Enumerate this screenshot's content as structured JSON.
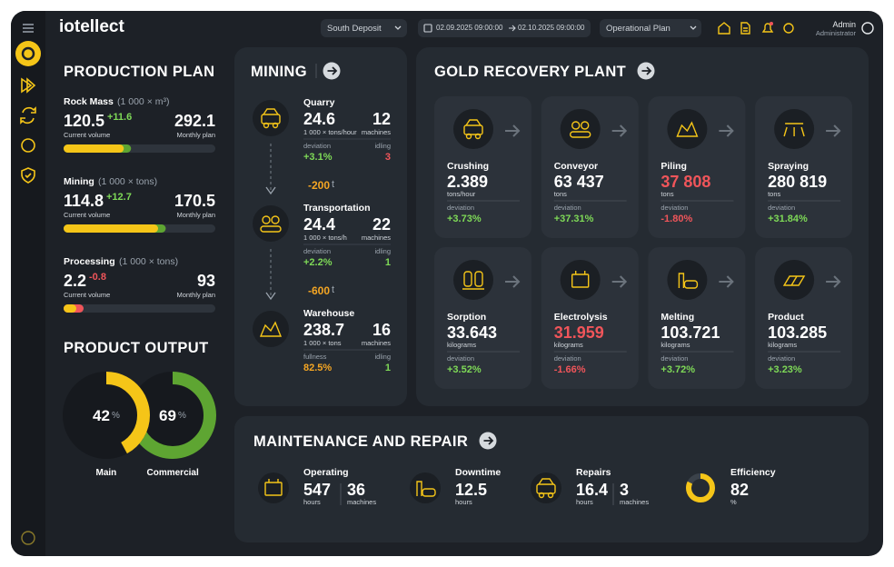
{
  "header": {
    "logo": "iotellect",
    "deposit": "South Deposit",
    "date_from": "02.09.2025 09:00:00",
    "date_to": "02.10.2025 09:00:00",
    "plan": "Operational Plan",
    "user": "Admin",
    "role": "Administrator"
  },
  "production_plan": {
    "title": "PRODUCTION PLAN",
    "current_label": "Current volume",
    "plan_label": "Monthly plan",
    "items": [
      {
        "name": "Rock Mass",
        "unit": "(1 000 × m³)",
        "current": 120.5,
        "delta": "+11.6",
        "plan": 292.1
      },
      {
        "name": "Mining",
        "unit": "(1 000 × tons)",
        "current": 114.8,
        "delta": "+12.7",
        "plan": 170.5
      },
      {
        "name": "Processing",
        "unit": "(1 000 × tons)",
        "current": 2.2,
        "delta": "-0.8",
        "plan": 93.0
      }
    ]
  },
  "product_output": {
    "title": "PRODUCT OUTPUT",
    "unit": "%",
    "items": [
      {
        "name": "Main",
        "value": 42,
        "color": "#f5c518"
      },
      {
        "name": "Commercial",
        "value": 69,
        "color": "#5ea532"
      }
    ]
  },
  "mining": {
    "title": "MINING",
    "stages": [
      {
        "name": "Quarry",
        "value": 24.6,
        "unit": "1 000 × tons/hour",
        "machines": 12,
        "machines_label": "machines",
        "left_label": "deviation",
        "left_value": "+3.1%",
        "left_color": "#7ed957",
        "right_label": "idling",
        "right_value": 3,
        "right_color": "#f0555a"
      },
      {
        "name": "Transportation",
        "value": 24.4,
        "unit": "1 000 × tons/h",
        "machines": 22,
        "machines_label": "machines",
        "left_label": "deviation",
        "left_value": "+2.2%",
        "left_color": "#7ed957",
        "right_label": "idling",
        "right_value": 1,
        "right_color": "#7ed957"
      },
      {
        "name": "Warehouse",
        "value": 238.7,
        "unit": "1 000 × tons",
        "machines": 16,
        "machines_label": "machines",
        "left_label": "fullness",
        "left_value": "82.5%",
        "left_color": "#f5a623",
        "right_label": "idling",
        "right_value": 1,
        "right_color": "#7ed957"
      }
    ],
    "losses": [
      {
        "value": -200,
        "unit": "t"
      },
      {
        "value": -600,
        "unit": "t"
      }
    ]
  },
  "gold_recovery": {
    "title": "GOLD RECOVERY PLANT",
    "deviation_label": "deviation",
    "stages": [
      {
        "name": "Crushing",
        "value": "2.389",
        "unit": "tons/hour",
        "deviation": "+3.73%",
        "value_color": "#ffffff"
      },
      {
        "name": "Conveyor",
        "value": "63 437",
        "unit": "tons",
        "deviation": "+37.31%",
        "value_color": "#ffffff"
      },
      {
        "name": "Piling",
        "value": "37 808",
        "unit": "tons",
        "deviation": "-1.80%",
        "value_color": "#f0555a"
      },
      {
        "name": "Spraying",
        "value": "280 819",
        "unit": "tons",
        "deviation": "+31.84%",
        "value_color": "#ffffff"
      },
      {
        "name": "Sorption",
        "value": "33.643",
        "unit": "kilograms",
        "deviation": "+3.52%",
        "value_color": "#ffffff"
      },
      {
        "name": "Electrolysis",
        "value": "31.959",
        "unit": "kilograms",
        "deviation": "-1.66%",
        "value_color": "#f0555a"
      },
      {
        "name": "Melting",
        "value": "103.721",
        "unit": "kilograms",
        "deviation": "+3.72%",
        "value_color": "#ffffff"
      },
      {
        "name": "Product",
        "value": "103.285",
        "unit": "kilograms",
        "deviation": "+3.23%",
        "value_color": "#ffffff"
      }
    ]
  },
  "maintenance": {
    "title": "MAINTENANCE AND REPAIR",
    "items": [
      {
        "name": "Operating",
        "value": 547,
        "unit": "hours",
        "value2": 36,
        "unit2": "machines"
      },
      {
        "name": "Downtime",
        "value": 12.5,
        "unit": "hours"
      },
      {
        "name": "Repairs",
        "value": 16.4,
        "unit": "hours",
        "value2": 3,
        "unit2": "machines"
      },
      {
        "name": "Efficiency",
        "value": 82,
        "unit": "%"
      }
    ]
  }
}
